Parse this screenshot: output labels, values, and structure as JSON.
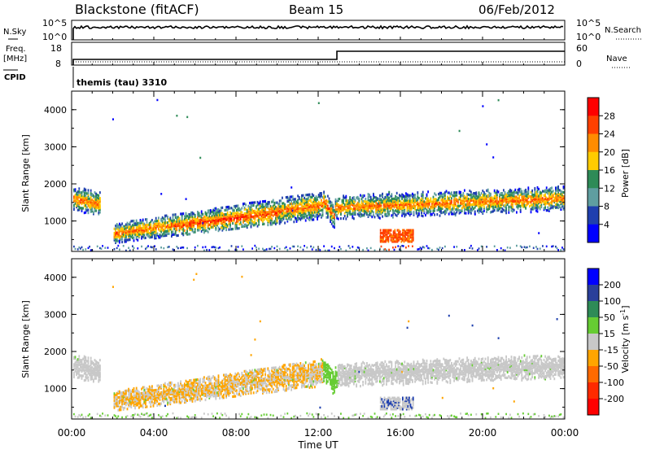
{
  "header": {
    "station": "Blackstone (fitACF)",
    "beam": "Beam 15",
    "date": "06/Feb/2012"
  },
  "noise_panel": {
    "left_label": "N.Sky",
    "right_label": "N.Search",
    "left_ticks": [
      "10^5",
      "10^0"
    ],
    "right_ticks": [
      "10^5",
      "10^0"
    ]
  },
  "freq_panel": {
    "left_label_line1": "Freq.",
    "left_label_line2": "[MHz]",
    "right_label": "Nave",
    "left_ticks": [
      "18",
      "8"
    ],
    "right_ticks": [
      "60",
      "0"
    ],
    "cpid_label": "CPID",
    "cpid_text": "themis (tau) 3310"
  },
  "chart_data": [
    {
      "type": "heatmap",
      "name": "power",
      "ylabel": "Slant Range [km]",
      "ylim": [
        180,
        4500
      ],
      "yticks": [
        "4000",
        "3000",
        "2000",
        "1000"
      ],
      "xlim_hours": [
        0,
        24
      ],
      "colorbar_label": "Power [dB]",
      "colorbar_ticks": [
        "28",
        "24",
        "20",
        "16",
        "12",
        "8",
        "4"
      ],
      "colorbar_colors": [
        "#ff0000",
        "#ff4000",
        "#ff8c00",
        "#ffcc00",
        "#2e8b57",
        "#5f9ea0",
        "#1f3fae",
        "#0000ff"
      ]
    },
    {
      "type": "heatmap",
      "name": "velocity",
      "ylabel": "Slant Range [km]",
      "ylim": [
        180,
        4500
      ],
      "yticks": [
        "4000",
        "3000",
        "2000",
        "1000"
      ],
      "xlim_hours": [
        0,
        24
      ],
      "xlabel": "Time UT",
      "xticks": [
        "00:00",
        "04:00",
        "08:00",
        "12:00",
        "16:00",
        "20:00",
        "00:00"
      ],
      "colorbar_label": "Velocity [m s",
      "colorbar_label_sup": "-1",
      "colorbar_label_end": "]",
      "colorbar_ticks": [
        "200",
        "100",
        "50",
        "15",
        "-15",
        "-50",
        "-100",
        "-200"
      ],
      "colorbar_colors": [
        "#0000ff",
        "#2a3f9a",
        "#2e8b57",
        "#66cc33",
        "#c8c8c8",
        "#ffa500",
        "#ff6a00",
        "#ff2a00",
        "#ff0000"
      ]
    }
  ]
}
